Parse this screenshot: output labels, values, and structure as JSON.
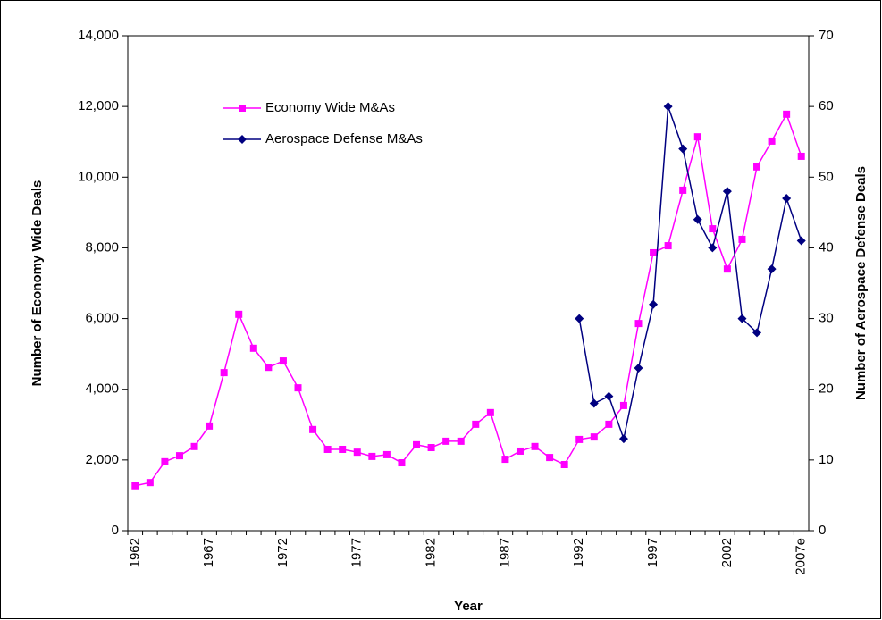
{
  "chart_data": {
    "type": "line",
    "x_label": "Year",
    "y_label": "Number of Economy Wide Deals",
    "y2_label": "Number of Aerospace Defense Deals",
    "categories": [
      "1962",
      null,
      null,
      null,
      null,
      "1967",
      null,
      null,
      null,
      null,
      "1972",
      null,
      null,
      null,
      null,
      "1977",
      null,
      null,
      null,
      null,
      "1982",
      null,
      null,
      null,
      null,
      "1987",
      null,
      null,
      null,
      null,
      "1992",
      null,
      null,
      null,
      null,
      "1997",
      null,
      null,
      null,
      null,
      "2002",
      null,
      null,
      null,
      null,
      "2007e"
    ],
    "series": [
      {
        "name": "Economy Wide M&As",
        "color": "#ff00ff",
        "marker": "square",
        "axis": "y",
        "values": [
          1270,
          1360,
          1950,
          2120,
          2380,
          2960,
          4470,
          6120,
          5160,
          4620,
          4800,
          4040,
          2860,
          2300,
          2300,
          2220,
          2100,
          2150,
          1920,
          2430,
          2350,
          2530,
          2530,
          3010,
          3340,
          2020,
          2250,
          2380,
          2070,
          1870,
          2580,
          2650,
          3010,
          3540,
          5860,
          7860,
          8060,
          9630,
          11140,
          8540,
          7400,
          8240,
          10290,
          11020,
          11780,
          10590
        ]
      },
      {
        "name": "Aerospace Defense M&As",
        "color": "#000080",
        "marker": "diamond",
        "axis": "y2",
        "values": [
          null,
          null,
          null,
          null,
          null,
          null,
          null,
          null,
          null,
          null,
          null,
          null,
          null,
          null,
          null,
          null,
          null,
          null,
          null,
          null,
          null,
          null,
          null,
          null,
          null,
          null,
          null,
          null,
          null,
          null,
          30,
          18,
          19,
          13,
          23,
          32,
          60,
          54,
          44,
          40,
          48,
          30,
          28,
          37,
          47,
          41
        ]
      }
    ],
    "ylim": [
      0,
      14000
    ],
    "yticks": [
      0,
      {
        "value": 2000,
        "label": "2,000"
      },
      {
        "value": 4000,
        "label": "4,000"
      },
      {
        "value": 6000,
        "label": "6,000"
      },
      {
        "value": 8000,
        "label": "8,000"
      },
      {
        "value": 10000,
        "label": "10,000"
      },
      {
        "value": 12000,
        "label": "12,000"
      },
      {
        "value": 14000,
        "label": "14,000"
      }
    ],
    "y2lim": [
      0,
      70
    ],
    "y2ticks": [
      0,
      10,
      20,
      30,
      40,
      50,
      60,
      70
    ],
    "grid": false
  }
}
